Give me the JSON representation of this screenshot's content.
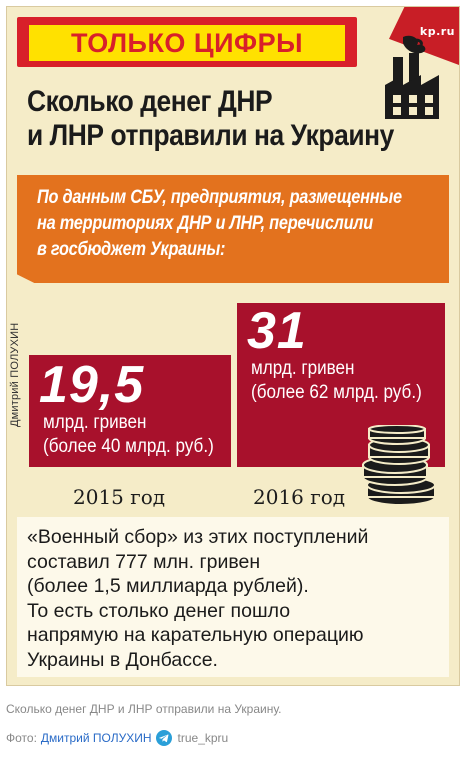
{
  "infographic": {
    "banner": "ТОЛЬКО ЦИФРЫ",
    "logo_text": "kp.ru",
    "title_lines": [
      "Сколько денег ДНР",
      "и ЛНР отправили на Украину"
    ],
    "source_lines": [
      "По данным СБУ, предприятия, размещенные",
      "на территориях ДНР и ЛНР, перечислили",
      "в госбюджет Украины:"
    ],
    "vertical_credit": "Дмитрий ПОЛУХИН",
    "bars": [
      {
        "year": "2015 год",
        "value": "19,5",
        "unit": "млрд. гривен",
        "note": "(более 40 млрд. руб.)"
      },
      {
        "year": "2016 год",
        "value": "31",
        "unit": "млрд. гривен",
        "note": "(более 62 млрд. руб.)"
      }
    ],
    "note_lines": [
      "«Военный сбор» из этих поступлений",
      "составил 777 млн. гривен",
      "(более 1,5 миллиарда рублей).",
      "То есть столько денег пошло",
      "напрямую на карательную операцию",
      "Украины в Донбассе."
    ],
    "colors": {
      "banner_red": "#d8202a",
      "banner_yellow": "#ffe100",
      "bar": "#a8112c",
      "source_orange": "#e3721e",
      "background": "#f5ecc8"
    },
    "icons": [
      "factory-icon",
      "coins-icon"
    ]
  },
  "caption": "Сколько денег ДНР и ЛНР отправили на Украину.",
  "credit": {
    "prefix": "Фото:",
    "author": "Дмитрий ПОЛУХИН",
    "icon": "telegram-icon",
    "handle": "true_kpru"
  }
}
